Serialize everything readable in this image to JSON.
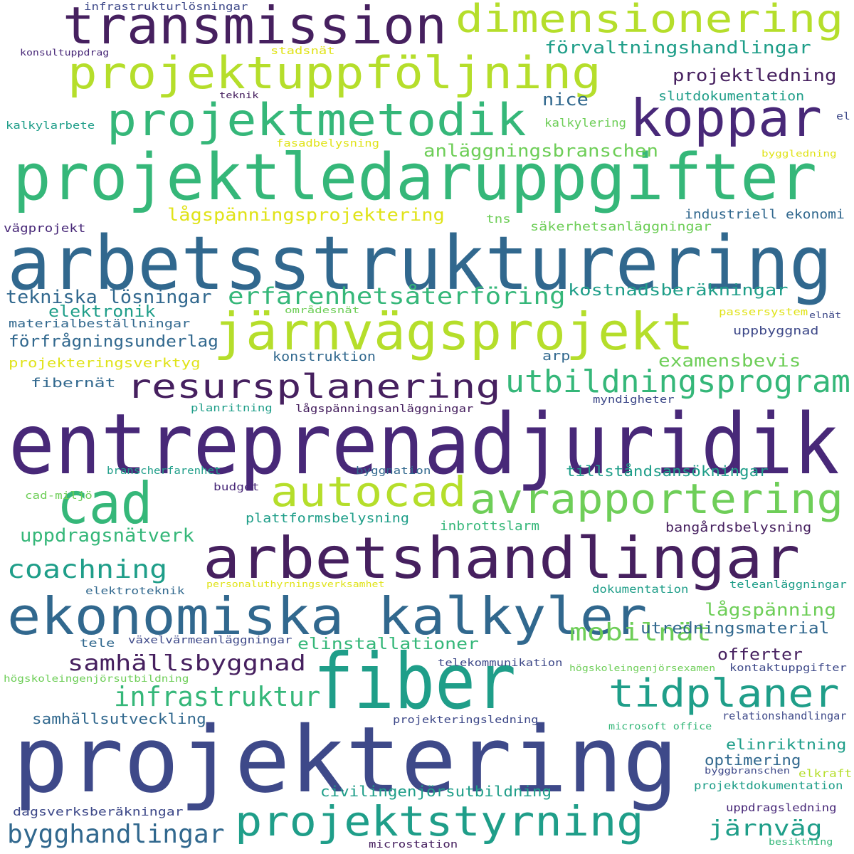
{
  "palette": {
    "purple": "#46205f",
    "violet": "#482878",
    "indigo": "#3e4989",
    "blue": "#31688e",
    "teal": "#26828e",
    "seagreen": "#1f9e89",
    "green": "#35b779",
    "lightgreen": "#6ece58",
    "lime": "#b5de2b",
    "yellow": "#e0e319"
  },
  "words": [
    {
      "id": "projektering",
      "text": "projektering"
    },
    {
      "id": "entreprenadjuridik",
      "text": "entreprenadjuridik"
    },
    {
      "id": "arbetsstrukturering",
      "text": "arbetsstrukturering"
    },
    {
      "id": "projektledaruppgifter",
      "text": "projektledaruppgifter"
    },
    {
      "id": "fiber",
      "text": "fiber"
    },
    {
      "id": "arbetshandlingar",
      "text": "arbetshandlingar"
    },
    {
      "id": "järnvägsprojekt",
      "text": "järnvägsprojekt"
    },
    {
      "id": "ekonomiska-kalkyler",
      "text": "ekonomiska kalkyler"
    },
    {
      "id": "cad",
      "text": "cad"
    },
    {
      "id": "koppar",
      "text": "koppar"
    },
    {
      "id": "transmission",
      "text": "transmission"
    },
    {
      "id": "projektuppföljning",
      "text": "projektuppföljning"
    },
    {
      "id": "projektmetodik",
      "text": "projektmetodik"
    },
    {
      "id": "dimensionering",
      "text": "dimensionering"
    },
    {
      "id": "projektstyrning",
      "text": "projektstyrning"
    },
    {
      "id": "avrapportering",
      "text": "avrapportering"
    },
    {
      "id": "autocad",
      "text": "autocad"
    },
    {
      "id": "tidplaner",
      "text": "tidplaner"
    },
    {
      "id": "resursplanering",
      "text": "resursplanering"
    },
    {
      "id": "utbildningsprogram",
      "text": "utbildningsprogram"
    },
    {
      "id": "infrastruktur",
      "text": "infrastruktur"
    },
    {
      "id": "bygghandlingar",
      "text": "bygghandlingar"
    },
    {
      "id": "coachning",
      "text": "coachning"
    },
    {
      "id": "erfarenhetsåterföring",
      "text": "erfarenhetsåterföring"
    },
    {
      "id": "mobilnät",
      "text": "mobilnät"
    },
    {
      "id": "samhällsbyggnad",
      "text": "samhällsbyggnad"
    },
    {
      "id": "järnväg",
      "text": "järnväg"
    },
    {
      "id": "uppdragsnätverk",
      "text": "uppdragsnätverk"
    },
    {
      "id": "tekniska-lösningar",
      "text": "tekniska lösningar"
    },
    {
      "id": "lågspänningsprojektering",
      "text": "lågspänningsprojektering"
    },
    {
      "id": "anläggningsbranschen",
      "text": "anläggningsbranschen"
    },
    {
      "id": "förvaltningshandlingar",
      "text": "förvaltningshandlingar"
    },
    {
      "id": "projektledning",
      "text": "projektledning"
    },
    {
      "id": "nice",
      "text": "nice"
    },
    {
      "id": "kostnadsberäkningar",
      "text": "kostnadsberäkningar"
    },
    {
      "id": "examensbevis",
      "text": "examensbevis"
    },
    {
      "id": "förfrågningsunderlag",
      "text": "förfrågningsunderlag"
    },
    {
      "id": "elektronik",
      "text": "elektronik"
    },
    {
      "id": "elinstallationer",
      "text": "elinstallationer"
    },
    {
      "id": "lågspänning",
      "text": "lågspänning"
    },
    {
      "id": "utredningsmaterial",
      "text": "utredningsmaterial"
    },
    {
      "id": "offerter",
      "text": "offerter"
    },
    {
      "id": "elinriktning",
      "text": "elinriktning"
    },
    {
      "id": "optimering",
      "text": "optimering"
    },
    {
      "id": "civilingenjörsutbildning",
      "text": "civilingenjörsutbildning"
    },
    {
      "id": "samhällsutveckling",
      "text": "samhällsutveckling"
    },
    {
      "id": "tillståndsansökningar",
      "text": "tillståndsansökningar"
    },
    {
      "id": "bangårdsbelysning",
      "text": "bangårdsbelysning"
    },
    {
      "id": "plattformsbelysning",
      "text": "plattformsbelysning"
    },
    {
      "id": "inbrottslarm",
      "text": "inbrottslarm"
    },
    {
      "id": "industriell-ekonomi",
      "text": "industriell ekonomi"
    },
    {
      "id": "säkerhetsanläggningar",
      "text": "säkerhetsanläggningar"
    },
    {
      "id": "slutdokumentation",
      "text": "slutdokumentation"
    },
    {
      "id": "kalkylering",
      "text": "kalkylering"
    },
    {
      "id": "fiberanät",
      "text": "fibernät"
    },
    {
      "id": "projekteringsverktyg",
      "text": "projekteringsverktyg"
    },
    {
      "id": "materialbeställningar",
      "text": "materialbeställningar"
    },
    {
      "id": "konstruktion",
      "text": "konstruktion"
    },
    {
      "id": "arp",
      "text": "arp"
    },
    {
      "id": "uppbyggnad",
      "text": "uppbyggnad"
    },
    {
      "id": "tele",
      "text": "tele"
    },
    {
      "id": "dokumentation",
      "text": "dokumentation"
    },
    {
      "id": "kontaktuppgifter",
      "text": "kontaktuppgifter"
    },
    {
      "id": "relationshandlingar",
      "text": "relationshandlingar"
    },
    {
      "id": "projektdokumentation",
      "text": "projektdokumentation"
    },
    {
      "id": "uppdragsledning",
      "text": "uppdragsledning"
    },
    {
      "id": "dagsverksberäkningar",
      "text": "dagsverksberäkningar"
    },
    {
      "id": "vägprojekt",
      "text": "vägprojekt"
    },
    {
      "id": "kalkylarbete",
      "text": "kalkylarbete"
    },
    {
      "id": "infrastrukturlösningar",
      "text": "infrastrukturlösningar"
    },
    {
      "id": "tns",
      "text": "tns"
    },
    {
      "id": "budget",
      "text": "budget"
    },
    {
      "id": "byggnation",
      "text": "byggnation"
    },
    {
      "id": "branscherfarenhet",
      "text": "branscherfarenhet"
    },
    {
      "id": "planritning",
      "text": "planritning"
    },
    {
      "id": "lågspänningsanläggningar",
      "text": "lågspänningsanläggningar"
    },
    {
      "id": "myndigheter",
      "text": "myndigheter"
    },
    {
      "id": "cad-miljö",
      "text": "cad-miljö"
    },
    {
      "id": "elektroteknik",
      "text": "elektroteknik"
    },
    {
      "id": "personaluthyrningsverksamhet",
      "text": "personaluthyrningsverksamhet"
    },
    {
      "id": "teleanläggningar",
      "text": "teleanläggningar"
    },
    {
      "id": "växelvärmeanläggningar",
      "text": "växelvärmeanläggningar"
    },
    {
      "id": "telekommunikation",
      "text": "telekommunikation"
    },
    {
      "id": "högskoleingenjörsexamen",
      "text": "högskoleingenjörsexamen"
    },
    {
      "id": "högskoleingenjörsutbildning",
      "text": "högskoleingenjörsutbildning"
    },
    {
      "id": "projekteringsledning",
      "text": "projekteringsledning"
    },
    {
      "id": "microsoft-office",
      "text": "microsoft office"
    },
    {
      "id": "byggbranschen",
      "text": "byggbranschen"
    },
    {
      "id": "elkraft",
      "text": "elkraft"
    },
    {
      "id": "microstation",
      "text": "microstation"
    },
    {
      "id": "besiktning",
      "text": "besiktning"
    },
    {
      "id": "konsultuppdrag",
      "text": "konsultuppdrag"
    },
    {
      "id": "stadsnät",
      "text": "stadsnät"
    },
    {
      "id": "teknik",
      "text": "teknik"
    },
    {
      "id": "fasadbelysning",
      "text": "fasadbelysning"
    },
    {
      "id": "byggledning",
      "text": "byggledning"
    },
    {
      "id": "el",
      "text": "el"
    },
    {
      "id": "områdesnät",
      "text": "områdesnät"
    },
    {
      "id": "passersystem",
      "text": "passersystem"
    },
    {
      "id": "elnät",
      "text": "elnät"
    }
  ]
}
